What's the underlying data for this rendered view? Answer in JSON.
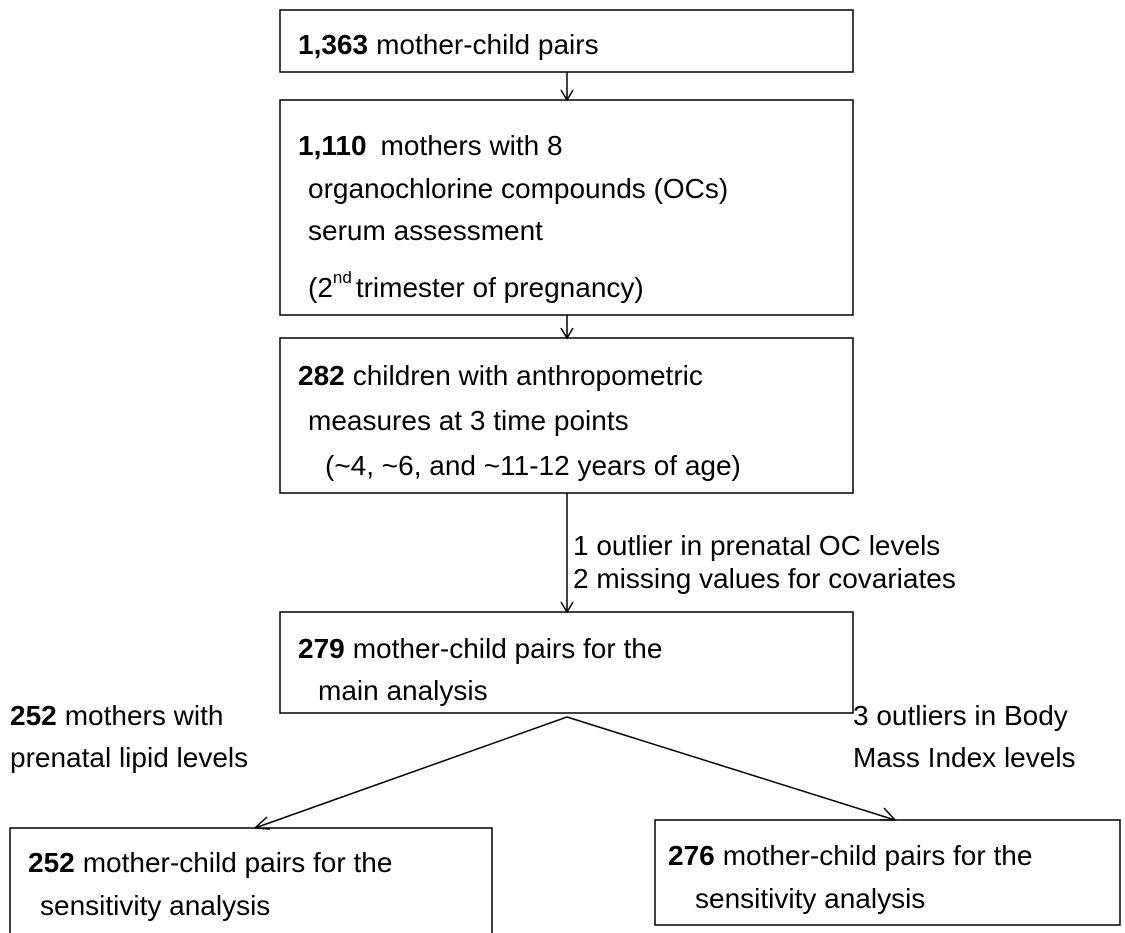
{
  "nodes": [
    {
      "count": "1,363",
      "lines": [
        "mother-child pairs"
      ]
    },
    {
      "count": "1,110",
      "lines": [
        "mothers with 8",
        "organochlorine compounds (OCs)",
        "serum assessment"
      ],
      "last_line": {
        "before": "(2",
        "sup": "nd",
        "after": "trimester of pregnancy)"
      }
    },
    {
      "count": "282",
      "lines": [
        "children with anthropometric",
        "measures at 3 time points",
        "(~4, ~6, and ~11-12 years of age)"
      ]
    },
    {
      "count": "279",
      "lines": [
        "mother-child pairs for the",
        "main analysis"
      ]
    },
    {
      "count": "252",
      "lines": [
        "mother-child pairs for the",
        "sensitivity analysis"
      ]
    },
    {
      "count": "276",
      "lines": [
        "mother-child pairs for the",
        "sensitivity analysis"
      ]
    }
  ],
  "exclusion": {
    "lines": [
      "1 outlier in prenatal OC levels",
      "2 missing values for covariates"
    ]
  },
  "left_branch": {
    "count": "252",
    "lines": [
      "mothers with",
      "prenatal lipid levels"
    ]
  },
  "right_branch": {
    "lines": [
      "3 outliers in Body",
      "Mass Index levels"
    ]
  }
}
